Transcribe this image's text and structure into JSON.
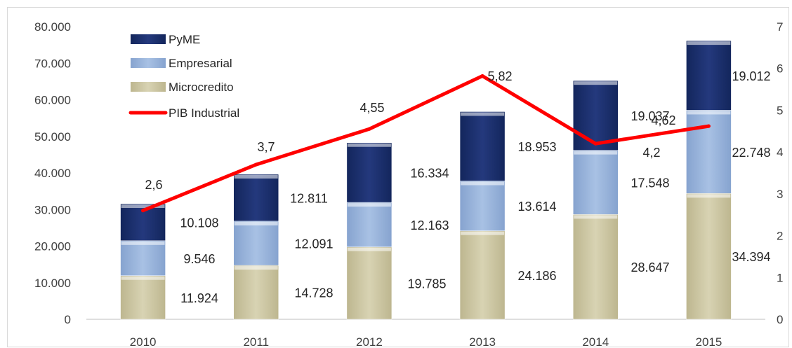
{
  "chart_data": {
    "type": "bar",
    "stacked": true,
    "categories": [
      "2010",
      "2011",
      "2012",
      "2013",
      "2014",
      "2015"
    ],
    "series": [
      {
        "name": "Microcredito",
        "values": [
          11924,
          14728,
          19785,
          24186,
          28647,
          34394
        ],
        "labels": [
          "11.924",
          "14.728",
          "19.785",
          "24.186",
          "28.647",
          "34.394"
        ],
        "color": "#cfc9a6"
      },
      {
        "name": "Empresarial",
        "values": [
          9546,
          12091,
          12163,
          13614,
          17548,
          22748
        ],
        "labels": [
          "9.546",
          "12.091",
          "12.163",
          "13.614",
          "17.548",
          "22.748"
        ],
        "color": "#98b4dc"
      },
      {
        "name": "PyME",
        "values": [
          10108,
          12811,
          16334,
          18953,
          19037,
          19012
        ],
        "labels": [
          "10.108",
          "12.811",
          "16.334",
          "18.953",
          "19.037",
          "19.012"
        ],
        "color": "#1b2f6b"
      }
    ],
    "line_series": {
      "name": "PIB Industrial",
      "axis": "right",
      "values": [
        2.6,
        3.7,
        4.55,
        5.82,
        4.2,
        4.62
      ],
      "labels": [
        "2,6",
        "3,7",
        "4,55",
        "5,82",
        "4,2",
        "4,62"
      ],
      "color": "#ff0000"
    },
    "y_left": {
      "ylim": [
        0,
        80000
      ],
      "ticks": [
        "0",
        "10.000",
        "20.000",
        "30.000",
        "40.000",
        "50.000",
        "60.000",
        "70.000",
        "80.000"
      ]
    },
    "y_right": {
      "ylim": [
        0,
        7
      ],
      "ticks": [
        "0",
        "1",
        "2",
        "3",
        "4",
        "5",
        "6",
        "7"
      ]
    },
    "legend": {
      "placement": "top-left",
      "entries": [
        "PyME",
        "Empresarial",
        "Microcredito",
        "PIB Industrial"
      ]
    },
    "grid": false
  }
}
